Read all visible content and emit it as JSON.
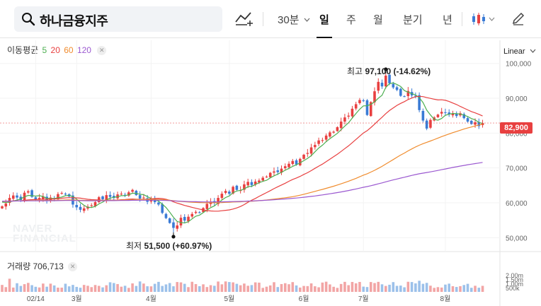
{
  "toolbar": {
    "stock_name": "하나금융지주",
    "interval": "30분",
    "periods": [
      "일",
      "주",
      "월",
      "분기",
      "년"
    ],
    "active_period": "일",
    "search_icon": "search-icon",
    "indicator_icon": "add-indicator-icon",
    "chart_type_icon": "candlestick-icon",
    "draw_icon": "pencil-icon"
  },
  "ma_legend": {
    "label": "이동평균",
    "items": [
      {
        "label": "5",
        "color": "#4caf50"
      },
      {
        "label": "20",
        "color": "#e84040"
      },
      {
        "label": "60",
        "color": "#f08c2e"
      },
      {
        "label": "120",
        "color": "#9b59d0"
      }
    ]
  },
  "scale_label": "Linear",
  "annotations": {
    "high": {
      "prefix": "최고",
      "value": "97,100",
      "change": "(-14.62%)"
    },
    "low": {
      "prefix": "최저",
      "value": "51,500",
      "change": "(+60.97%)"
    }
  },
  "current_price": "82,900",
  "volume_legend": {
    "label": "거래량",
    "value": "706,713"
  },
  "watermark": [
    "NAVER",
    "FINANCIAL"
  ],
  "colors": {
    "up": "#e84040",
    "down": "#3a7bd5",
    "vol_up": "#f2a5a5",
    "vol_down": "#9cc1ea"
  },
  "chart_data": {
    "type": "candlestick",
    "y_ticks": [
      "100,000",
      "90,000",
      "80,000",
      "70,000",
      "60,000",
      "50,000"
    ],
    "ylim": [
      46000,
      104000
    ],
    "x_tick_labels": [
      {
        "label": "02/14",
        "index": 9
      },
      {
        "label": "3월",
        "index": 20
      },
      {
        "label": "4월",
        "index": 40
      },
      {
        "label": "5월",
        "index": 61
      },
      {
        "label": "6월",
        "index": 81
      },
      {
        "label": "7월",
        "index": 97
      },
      {
        "label": "8월",
        "index": 119
      }
    ],
    "volume_ticks": [
      "2.00m",
      "1.50m",
      "1.00m",
      "500k"
    ],
    "volume_max": 2000000,
    "closes": [
      59000,
      59800,
      61400,
      62100,
      61500,
      60800,
      62900,
      63300,
      61700,
      60900,
      61400,
      61800,
      60500,
      61500,
      61000,
      62500,
      62800,
      62400,
      61800,
      59500,
      58700,
      58000,
      58400,
      58900,
      59300,
      60200,
      61600,
      61000,
      62200,
      61700,
      61400,
      62400,
      62600,
      62100,
      63000,
      63700,
      62200,
      61200,
      61500,
      60300,
      61000,
      60200,
      59500,
      57100,
      55600,
      54200,
      52800,
      53500,
      55700,
      54900,
      56000,
      56800,
      57400,
      57200,
      58500,
      59700,
      60300,
      59900,
      61400,
      62600,
      63400,
      62600,
      64600,
      63700,
      63600,
      65300,
      66000,
      65100,
      66100,
      66400,
      67200,
      67500,
      68600,
      69000,
      68800,
      69800,
      70500,
      71200,
      72000,
      71000,
      72600,
      73800,
      74300,
      75900,
      76600,
      77900,
      78000,
      79300,
      80200,
      80400,
      81700,
      83300,
      84500,
      85000,
      87000,
      88300,
      89500,
      89300,
      85200,
      88900,
      92000,
      94700,
      93400,
      96500,
      94300,
      93100,
      92400,
      90700,
      90500,
      92100,
      90800,
      90700,
      86600,
      83600,
      81300,
      83800,
      84500,
      85300,
      86100,
      85800,
      85400,
      85600,
      84900,
      85700,
      84300,
      83300,
      82600,
      83100,
      82000,
      82900
    ],
    "volumes": [
      820000,
      560000,
      1550000,
      510000,
      1020000,
      700000,
      910000,
      1060000,
      790000,
      600000,
      520000,
      980000,
      610000,
      970000,
      760000,
      500000,
      500000,
      960000,
      650000,
      820000,
      590000,
      490000,
      820000,
      720000,
      560000,
      810000,
      710000,
      530000,
      780000,
      1130000,
      1040000,
      920000,
      610000,
      720000,
      470000,
      1000000,
      700000,
      1230000,
      980000,
      660000,
      650000,
      950000,
      1180000,
      700000,
      880000,
      1040000,
      660000,
      1160000,
      1120000,
      950000,
      560000,
      1190000,
      920000,
      670000,
      890000,
      570000,
      790000,
      720000,
      1220000,
      890000,
      1230000,
      1160000,
      1120000,
      950000,
      780000,
      980000,
      720000,
      800000,
      1120000,
      1090000,
      470000,
      610000,
      760000,
      1140000,
      570000,
      920000,
      1020000,
      900000,
      1150000,
      760000,
      510000,
      700000,
      680000,
      1000000,
      660000,
      540000,
      1100000,
      1200000,
      880000,
      600000,
      470000,
      930000,
      1180000,
      790000,
      1170000,
      1010000,
      1170000,
      620000,
      570000,
      1160000,
      1040000,
      1180000,
      890000,
      700000,
      840000,
      1150000,
      710000,
      740000,
      540000,
      1190000,
      1160000,
      1000000,
      1310000,
      950000,
      1060000,
      730000,
      470000,
      560000,
      510000,
      860000,
      970000,
      670000,
      580000,
      670000,
      810000,
      950000,
      480000,
      720000,
      490000,
      710000
    ]
  }
}
